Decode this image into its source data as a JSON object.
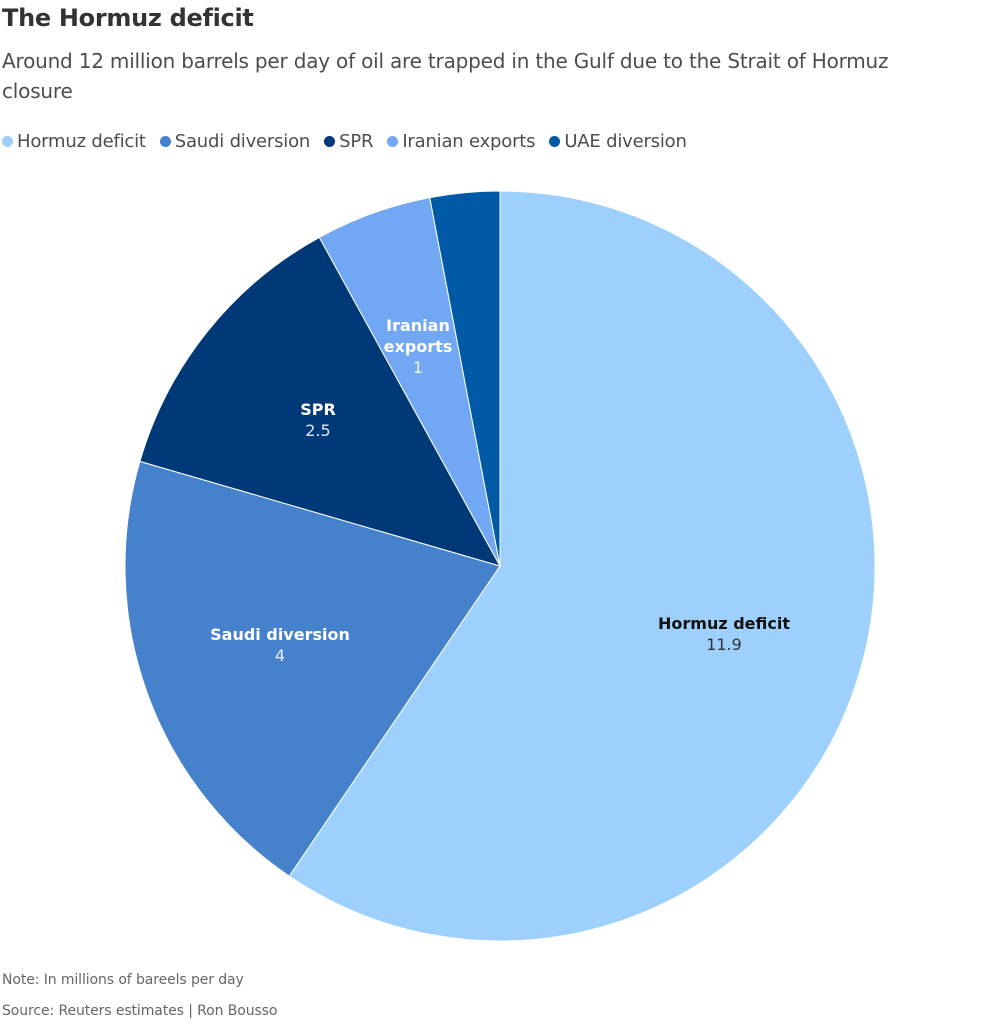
{
  "header": {
    "title": "The Hormuz deficit",
    "subtitle": "Around 12 million barrels per day of oil are trapped in the Gulf due to the Strait of Hormuz closure"
  },
  "legend": [
    {
      "label": "Hormuz deficit",
      "color": "#9dd0fd"
    },
    {
      "label": "Saudi diversion",
      "color": "#4682cb"
    },
    {
      "label": "SPR",
      "color": "#003977"
    },
    {
      "label": "Iranian exports",
      "color": "#72a8f3"
    },
    {
      "label": "UAE diversion",
      "color": "#005aa5"
    }
  ],
  "slice_labels": [
    {
      "name": "Hormuz deficit",
      "value": "11.9"
    },
    {
      "name": "Saudi diversion",
      "value": "4"
    },
    {
      "name": "SPR",
      "value": "2.5"
    },
    {
      "name": "Iranian",
      "name2": "exports",
      "value": "1"
    }
  ],
  "footer": {
    "note": "Note: In millions of bareels per day",
    "source": "Source: Reuters estimates | Ron Bousso"
  },
  "chart_data": {
    "type": "pie",
    "title": "The Hormuz deficit",
    "subtitle": "Around 12 million barrels per day of oil are trapped in the Gulf due to the Strait of Hormuz closure",
    "categories": [
      "Hormuz deficit",
      "Saudi diversion",
      "SPR",
      "Iranian exports",
      "UAE diversion"
    ],
    "values": [
      11.9,
      4,
      2.5,
      1,
      0.6
    ],
    "value_labels_shown": [
      "11.9",
      "4",
      "2.5",
      "1",
      ""
    ],
    "colors": [
      "#9dd0fd",
      "#4682cb",
      "#003977",
      "#72a8f3",
      "#005aa5"
    ],
    "units": "millions of barrels per day",
    "start_angle_deg": 0,
    "direction": "clockwise",
    "legend_position": "top",
    "note": "Note: In millions of bareels per day",
    "source": "Source: Reuters estimates | Ron Bousso"
  }
}
